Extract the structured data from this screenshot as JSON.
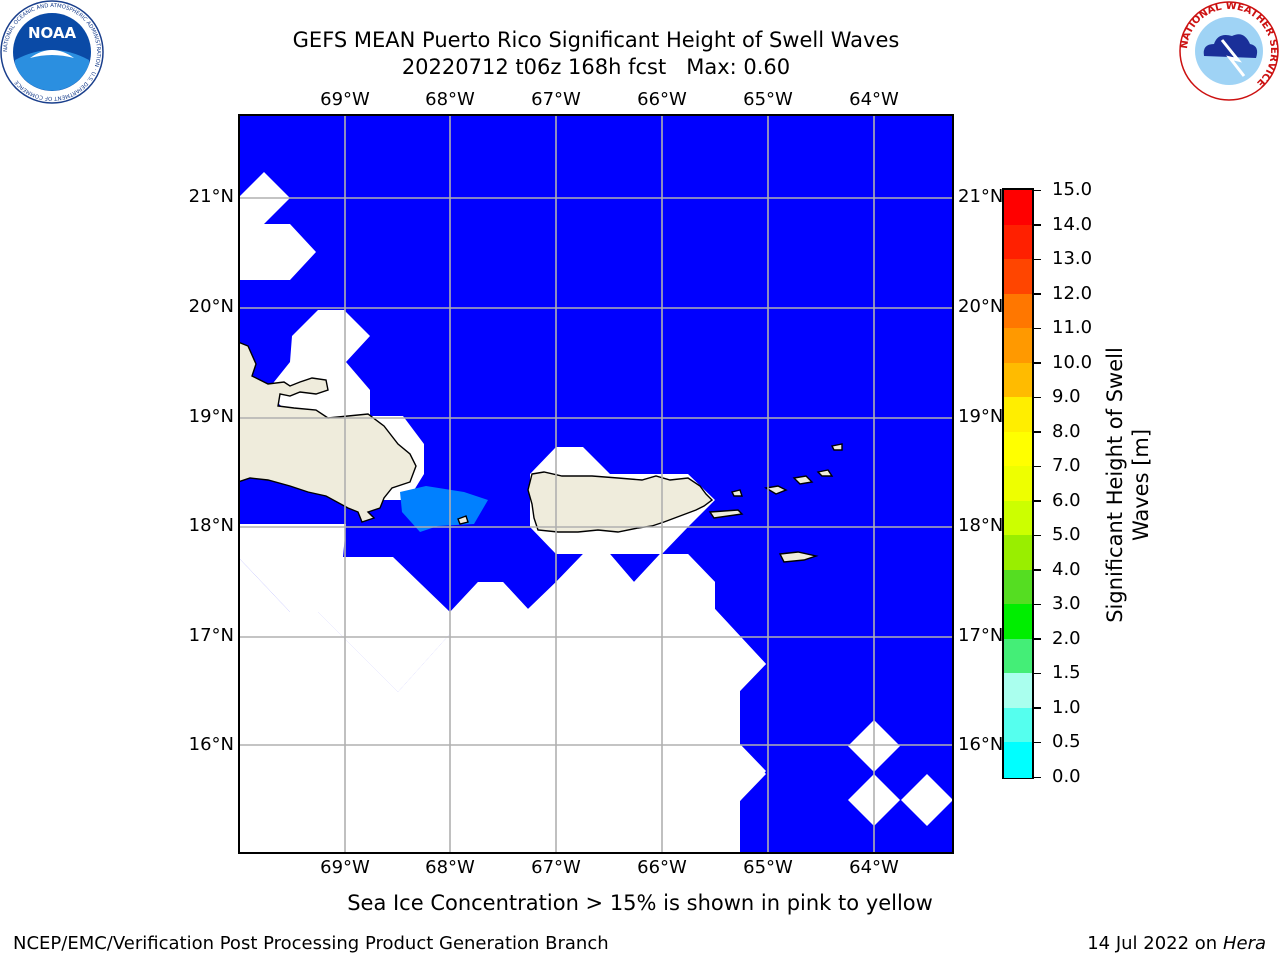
{
  "header": {
    "title_line1": "GEFS MEAN Puerto Rico Significant Height of Swell Waves",
    "title_line2": "20220712 t06z 168h fcst   Max: 0.60"
  },
  "logos": {
    "noaa_text": "NOAA",
    "noaa_ring_text": "NATIONAL OCEANIC AND ATMOSPHERIC ADMINISTRATION · U.S. DEPARTMENT OF COMMERCE",
    "nws_ring_text": "NATIONAL WEATHER SERVICE"
  },
  "map": {
    "lon_labels": [
      "69°W",
      "68°W",
      "67°W",
      "66°W",
      "65°W",
      "64°W"
    ],
    "lat_labels": [
      "21°N",
      "20°N",
      "19°N",
      "18°N",
      "17°N",
      "16°N"
    ],
    "lon_range": [
      -70.0,
      -63.25
    ],
    "lat_range": [
      15.0,
      21.75
    ],
    "colors": {
      "ocean_0_05": "#0000ff",
      "ocean_05_10": "#0080ff",
      "land": "#efecdc",
      "no_data": "#ffffff",
      "grid": "#b0b0b0"
    }
  },
  "colorbar": {
    "label_line1": "Significant Height of Swell",
    "label_line2": "Waves [m]",
    "ticks": [
      "15.0",
      "14.0",
      "13.0",
      "12.0",
      "11.0",
      "10.0",
      "9.0",
      "8.0",
      "7.0",
      "6.0",
      "5.0",
      "4.0",
      "3.0",
      "2.0",
      "1.5",
      "1.0",
      "0.5",
      "0.0"
    ],
    "colors_top_to_bottom": [
      "#ff0000",
      "#ff2000",
      "#ff4500",
      "#ff7700",
      "#ff9900",
      "#ffbb00",
      "#ffee00",
      "#ffff00",
      "#eeff00",
      "#ccff00",
      "#99ee00",
      "#55dd22",
      "#00ee00",
      "#44ee77",
      "#aaffee",
      "#55ffee",
      "#00ffff",
      "#0080ff",
      "#0000ff"
    ]
  },
  "notes": {
    "sea_ice": "Sea Ice Concentration > 15% is shown in pink to yellow"
  },
  "footer": {
    "left": "NCEP/EMC/Verification Post Processing Product Generation Branch",
    "right_date": "14 Jul 2022 on ",
    "right_machine": "Hera"
  }
}
